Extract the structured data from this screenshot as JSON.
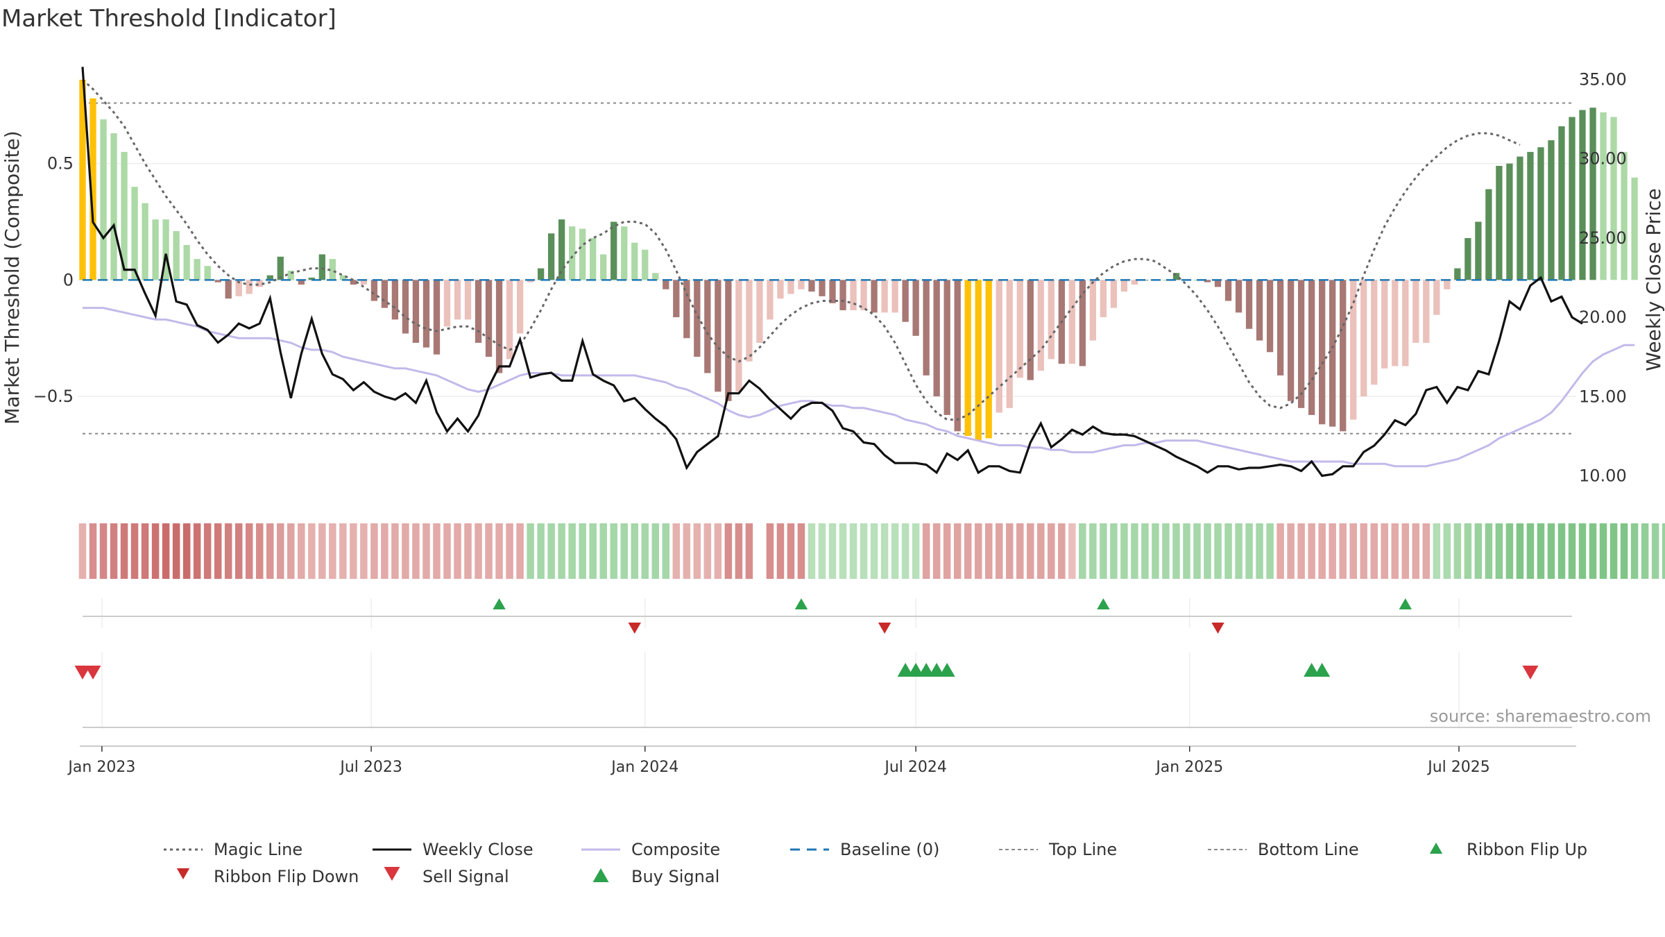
{
  "title": "Market Threshold [Indicator]",
  "source_note": "source: sharemaestro.com",
  "colors": {
    "bar_green_dark": "#5a8f5a",
    "bar_green_light": "#acd9a6",
    "bar_red_dark": "#a87875",
    "bar_red_light": "#ebc1bc",
    "bar_highlight": "#ffc107",
    "weekly_close": "#111111",
    "composite": "#c3b9ea",
    "magic_line": "#666666",
    "baseline": "#1f77b4",
    "threshold_line": "#888888",
    "buy": "#2ca24d",
    "sell": "#d9363e"
  },
  "chart_data": {
    "type": "bar",
    "title": "Market Threshold [Indicator]",
    "ylabel_left": "Market Threshold (Composite)",
    "ylabel_right": "Weekly Close Price",
    "ylim_left": [
      -0.95,
      0.97
    ],
    "ylim_right": [
      8.4,
      36.6
    ],
    "top_line": 0.76,
    "bottom_line": -0.66,
    "y_ticks_left": [
      {
        "v": 0.5,
        "label": "0.5"
      },
      {
        "v": 0,
        "label": "0"
      },
      {
        "v": -0.5,
        "label": "−0.5"
      }
    ],
    "y_ticks_right": [
      {
        "v": 35,
        "label": "35.00"
      },
      {
        "v": 30,
        "label": "30.00"
      },
      {
        "v": 25,
        "label": "25.00"
      },
      {
        "v": 20,
        "label": "20.00"
      },
      {
        "v": 15,
        "label": "15.00"
      },
      {
        "v": 10,
        "label": "10.00"
      }
    ],
    "x_range": [
      "2022-12-19",
      "2025-09-15"
    ],
    "x_ticks": [
      {
        "date": "2023-01-01",
        "label": "Jan 2023"
      },
      {
        "date": "2023-07-01",
        "label": "Jul 2023"
      },
      {
        "date": "2024-01-01",
        "label": "Jan 2024"
      },
      {
        "date": "2024-07-01",
        "label": "Jul 2024"
      },
      {
        "date": "2025-01-01",
        "label": "Jan 2025"
      },
      {
        "date": "2025-07-01",
        "label": "Jul 2025"
      }
    ],
    "weeks_start": "2022-12-19",
    "composite_bars": [
      0.86,
      0.78,
      0.69,
      0.63,
      0.55,
      0.4,
      0.33,
      0.26,
      0.26,
      0.21,
      0.15,
      0.09,
      0.06,
      -0.01,
      -0.08,
      -0.07,
      -0.06,
      -0.03,
      0.02,
      0.1,
      0.04,
      -0.02,
      0.01,
      0.11,
      0.09,
      0.02,
      -0.02,
      -0.02,
      -0.09,
      -0.12,
      -0.17,
      -0.23,
      -0.27,
      -0.29,
      -0.32,
      -0.2,
      -0.17,
      -0.17,
      -0.27,
      -0.33,
      -0.4,
      -0.34,
      -0.23,
      -0.01,
      0.05,
      0.2,
      0.26,
      0.23,
      0.22,
      0.18,
      0.11,
      0.25,
      0.23,
      0.16,
      0.13,
      0.03,
      -0.04,
      -0.16,
      -0.25,
      -0.33,
      -0.4,
      -0.48,
      -0.52,
      -0.48,
      -0.35,
      -0.27,
      -0.17,
      -0.08,
      -0.06,
      -0.04,
      -0.05,
      -0.07,
      -0.1,
      -0.13,
      -0.13,
      -0.13,
      -0.14,
      -0.14,
      -0.14,
      -0.18,
      -0.24,
      -0.41,
      -0.5,
      -0.58,
      -0.65,
      -0.67,
      -0.69,
      -0.68,
      -0.57,
      -0.55,
      -0.42,
      -0.43,
      -0.39,
      -0.34,
      -0.36,
      -0.36,
      -0.37,
      -0.26,
      -0.16,
      -0.12,
      -0.05,
      -0.02,
      0,
      0,
      0,
      0.03,
      0,
      0,
      -0.01,
      -0.03,
      -0.09,
      -0.14,
      -0.21,
      -0.26,
      -0.31,
      -0.41,
      -0.52,
      -0.55,
      -0.58,
      -0.62,
      -0.63,
      -0.65,
      -0.6,
      -0.5,
      -0.45,
      -0.38,
      -0.37,
      -0.37,
      -0.27,
      -0.27,
      -0.15,
      -0.04,
      0.05,
      0.18,
      0.25,
      0.39,
      0.49,
      0.5,
      0.53,
      0.55,
      0.57,
      0.6,
      0.66,
      0.7,
      0.73,
      0.74,
      0.72,
      0.7,
      0.55,
      0.44
    ],
    "magic_line": [
      0.86,
      0.82,
      0.77,
      0.72,
      0.66,
      0.58,
      0.5,
      0.43,
      0.36,
      0.3,
      0.24,
      0.17,
      0.11,
      0.06,
      0.02,
      -0.01,
      -0.02,
      -0.02,
      -0.01,
      0.01,
      0.03,
      0.04,
      0.05,
      0.05,
      0.04,
      0.02,
      0,
      -0.03,
      -0.06,
      -0.09,
      -0.12,
      -0.16,
      -0.19,
      -0.21,
      -0.22,
      -0.21,
      -0.2,
      -0.2,
      -0.22,
      -0.25,
      -0.28,
      -0.3,
      -0.28,
      -0.21,
      -0.13,
      -0.04,
      0.04,
      0.1,
      0.15,
      0.18,
      0.2,
      0.23,
      0.25,
      0.25,
      0.24,
      0.2,
      0.13,
      0.04,
      -0.06,
      -0.15,
      -0.23,
      -0.29,
      -0.33,
      -0.35,
      -0.33,
      -0.29,
      -0.24,
      -0.19,
      -0.15,
      -0.12,
      -0.1,
      -0.09,
      -0.09,
      -0.09,
      -0.1,
      -0.12,
      -0.15,
      -0.2,
      -0.27,
      -0.36,
      -0.45,
      -0.52,
      -0.57,
      -0.6,
      -0.6,
      -0.58,
      -0.54,
      -0.5,
      -0.46,
      -0.42,
      -0.38,
      -0.34,
      -0.3,
      -0.24,
      -0.18,
      -0.12,
      -0.06,
      -0.01,
      0.03,
      0.06,
      0.08,
      0.09,
      0.09,
      0.08,
      0.05,
      0.02,
      -0.02,
      -0.07,
      -0.13,
      -0.2,
      -0.28,
      -0.36,
      -0.44,
      -0.5,
      -0.54,
      -0.55,
      -0.53,
      -0.49,
      -0.43,
      -0.36,
      -0.29,
      -0.2,
      -0.1,
      0.02,
      0.13,
      0.23,
      0.31,
      0.38,
      0.44,
      0.49,
      0.53,
      0.57,
      0.6,
      0.62,
      0.63,
      0.63,
      0.62,
      0.6,
      0.58
    ],
    "weekly_close": [
      35.8,
      26.0,
      25.0,
      25.8,
      23.0,
      23.0,
      21.5,
      20.1,
      24.0,
      21.0,
      20.8,
      19.5,
      19.2,
      18.4,
      18.9,
      19.6,
      19.3,
      19.6,
      21.2,
      17.8,
      14.9,
      17.7,
      19.9,
      17.7,
      16.4,
      16.1,
      15.4,
      15.9,
      15.3,
      15.0,
      14.8,
      15.2,
      14.6,
      16.0,
      14.0,
      12.8,
      13.6,
      12.8,
      13.8,
      15.6,
      16.9,
      16.9,
      18.6,
      16.2,
      16.4,
      16.5,
      16.0,
      16.0,
      18.5,
      16.4,
      16.0,
      15.7,
      14.7,
      14.9,
      14.2,
      13.6,
      13.1,
      12.3,
      10.5,
      11.5,
      12.0,
      12.5,
      15.2,
      15.2,
      16.0,
      15.5,
      14.8,
      14.2,
      13.6,
      14.3,
      14.6,
      14.6,
      14.1,
      13.0,
      12.8,
      12.1,
      12.0,
      11.3,
      10.8,
      10.8,
      10.8,
      10.7,
      10.2,
      11.4,
      11.0,
      11.6,
      10.2,
      10.6,
      10.6,
      10.3,
      10.2,
      12.1,
      13.3,
      11.8,
      12.3,
      12.9,
      12.6,
      13.1,
      12.7,
      12.6,
      12.6,
      12.5,
      12.2,
      11.9,
      11.6,
      11.2,
      10.9,
      10.6,
      10.2,
      10.6,
      10.6,
      10.4,
      10.5,
      10.5,
      10.6,
      10.7,
      10.6,
      10.3,
      10.9,
      10.0,
      10.1,
      10.6,
      10.6,
      11.5,
      11.9,
      12.6,
      13.5,
      13.2,
      13.9,
      15.4,
      15.6,
      14.6,
      15.6,
      15.4,
      16.6,
      16.4,
      18.5,
      21.0,
      20.5,
      22.0,
      22.5,
      21.0,
      21.3,
      20.0,
      19.6
    ],
    "composite_line": [
      -0.12,
      -0.12,
      -0.12,
      -0.13,
      -0.14,
      -0.15,
      -0.16,
      -0.17,
      -0.17,
      -0.18,
      -0.19,
      -0.2,
      -0.22,
      -0.23,
      -0.24,
      -0.25,
      -0.25,
      -0.25,
      -0.25,
      -0.26,
      -0.27,
      -0.29,
      -0.3,
      -0.3,
      -0.31,
      -0.33,
      -0.34,
      -0.35,
      -0.36,
      -0.37,
      -0.38,
      -0.38,
      -0.39,
      -0.4,
      -0.41,
      -0.43,
      -0.45,
      -0.47,
      -0.48,
      -0.47,
      -0.45,
      -0.43,
      -0.41,
      -0.4,
      -0.4,
      -0.4,
      -0.41,
      -0.41,
      -0.41,
      -0.41,
      -0.41,
      -0.41,
      -0.41,
      -0.41,
      -0.42,
      -0.43,
      -0.44,
      -0.46,
      -0.47,
      -0.49,
      -0.51,
      -0.53,
      -0.56,
      -0.58,
      -0.59,
      -0.58,
      -0.56,
      -0.54,
      -0.53,
      -0.52,
      -0.52,
      -0.53,
      -0.54,
      -0.54,
      -0.55,
      -0.55,
      -0.56,
      -0.57,
      -0.58,
      -0.6,
      -0.61,
      -0.62,
      -0.64,
      -0.65,
      -0.67,
      -0.68,
      -0.69,
      -0.7,
      -0.71,
      -0.71,
      -0.71,
      -0.72,
      -0.72,
      -0.73,
      -0.73,
      -0.74,
      -0.74,
      -0.74,
      -0.73,
      -0.72,
      -0.71,
      -0.71,
      -0.7,
      -0.7,
      -0.69,
      -0.69,
      -0.69,
      -0.69,
      -0.7,
      -0.71,
      -0.72,
      -0.73,
      -0.74,
      -0.75,
      -0.76,
      -0.77,
      -0.78,
      -0.78,
      -0.78,
      -0.78,
      -0.78,
      -0.78,
      -0.79,
      -0.79,
      -0.79,
      -0.79,
      -0.8,
      -0.8,
      -0.8,
      -0.8,
      -0.79,
      -0.78,
      -0.77,
      -0.75,
      -0.73,
      -0.71,
      -0.68,
      -0.66,
      -0.64,
      -0.62,
      -0.6,
      -0.57,
      -0.52,
      -0.46,
      -0.4,
      -0.35,
      -0.32,
      -0.3,
      -0.28,
      -0.28
    ],
    "ribbon": [
      -0.3,
      -0.55,
      -0.6,
      -0.65,
      -0.7,
      -0.7,
      -0.7,
      -0.75,
      -0.8,
      -0.8,
      -0.8,
      -0.75,
      -0.7,
      -0.7,
      -0.65,
      -0.65,
      -0.6,
      -0.55,
      -0.5,
      -0.45,
      -0.4,
      -0.35,
      -0.3,
      -0.3,
      -0.3,
      -0.3,
      -0.3,
      -0.3,
      -0.35,
      -0.35,
      -0.35,
      -0.35,
      -0.35,
      -0.35,
      -0.35,
      -0.35,
      -0.35,
      -0.35,
      -0.35,
      -0.35,
      -0.35,
      -0.35,
      -0.35,
      0.4,
      0.4,
      0.4,
      0.4,
      0.4,
      0.4,
      0.4,
      0.4,
      0.4,
      0.4,
      0.4,
      0.4,
      0.4,
      0.4,
      -0.3,
      -0.3,
      -0.3,
      -0.3,
      -0.3,
      -0.55,
      -0.55,
      -0.55,
      null,
      -0.55,
      -0.55,
      -0.55,
      -0.55,
      0.25,
      0.25,
      0.25,
      0.25,
      0.25,
      0.25,
      0.25,
      0.25,
      0.25,
      0.25,
      0.25,
      -0.4,
      -0.4,
      -0.4,
      -0.4,
      -0.4,
      -0.4,
      -0.4,
      -0.4,
      -0.4,
      -0.4,
      -0.4,
      -0.4,
      -0.4,
      -0.4,
      -0.2,
      0.4,
      0.4,
      0.4,
      0.4,
      0.4,
      0.4,
      0.4,
      0.4,
      0.4,
      0.4,
      0.4,
      0.4,
      0.4,
      0.4,
      0.4,
      0.4,
      0.4,
      0.4,
      0.4,
      -0.35,
      -0.35,
      -0.35,
      -0.35,
      -0.35,
      -0.35,
      -0.35,
      -0.35,
      -0.35,
      -0.35,
      -0.35,
      -0.35,
      -0.35,
      -0.35,
      -0.35,
      0.3,
      0.35,
      0.4,
      0.45,
      0.5,
      0.55,
      0.6,
      0.65,
      0.7,
      0.7,
      0.7,
      0.7,
      0.7,
      0.7,
      0.7,
      0.7,
      0.7,
      0.7,
      0.7,
      0.6,
      0.55,
      0.5,
      0.5,
      0.5,
      0.5
    ],
    "ribbon_flips_up": [
      "2023-09-25",
      "2024-04-15",
      "2024-11-04",
      "2025-05-26"
    ],
    "ribbon_flips_down": [
      "2023-12-25",
      "2024-06-10",
      "2025-01-20"
    ],
    "sell_signals": [
      "2022-12-19",
      "2022-12-26",
      "2025-08-18"
    ],
    "buy_signals": [
      "2024-06-24",
      "2024-07-01",
      "2024-07-08",
      "2024-07-15",
      "2024-07-22",
      "2025-03-24",
      "2025-03-31"
    ],
    "legend": [
      {
        "key": "magic",
        "label": "Magic Line"
      },
      {
        "key": "close",
        "label": "Weekly Close"
      },
      {
        "key": "composite",
        "label": "Composite"
      },
      {
        "key": "baseline",
        "label": "Baseline (0)"
      },
      {
        "key": "top",
        "label": "Top Line"
      },
      {
        "key": "bottom",
        "label": "Bottom Line"
      },
      {
        "key": "flipup",
        "label": "Ribbon Flip Up"
      },
      {
        "key": "flipdown",
        "label": "Ribbon Flip Down"
      },
      {
        "key": "sell",
        "label": "Sell Signal"
      },
      {
        "key": "buy",
        "label": "Buy Signal"
      }
    ]
  }
}
